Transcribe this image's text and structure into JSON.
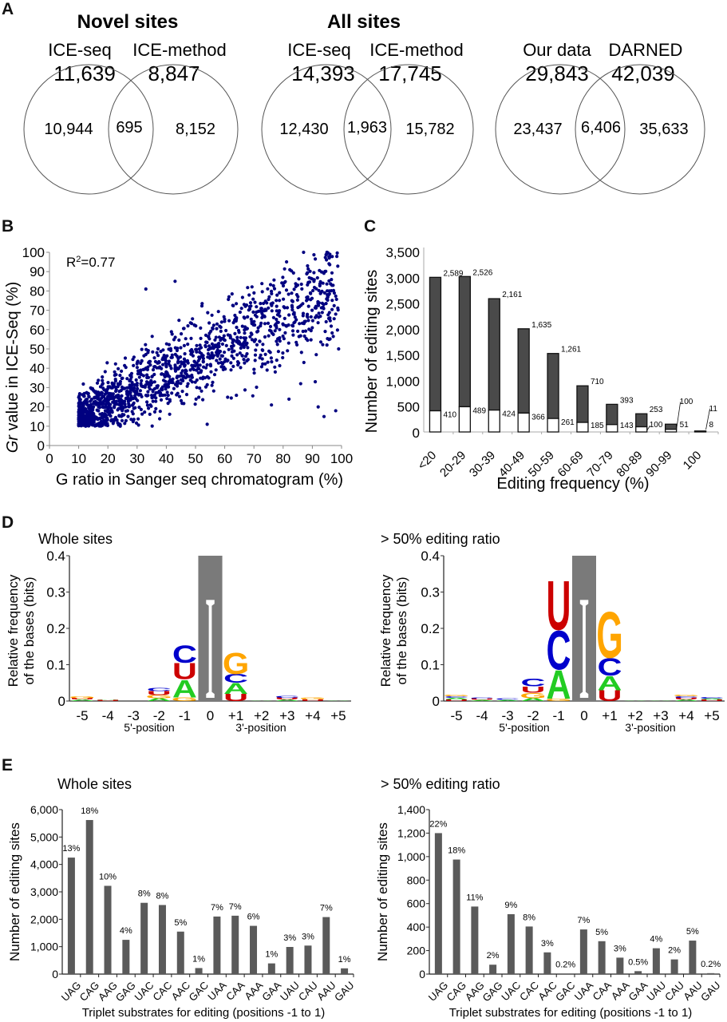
{
  "panels": {
    "A": {
      "letter": "A",
      "venns": [
        {
          "title": "Novel sites",
          "left_label": "ICE-seq",
          "right_label": "ICE-method",
          "left_total": "11,639",
          "right_total": "8,847",
          "left_only": "10,944",
          "overlap": "695",
          "right_only": "8,152"
        },
        {
          "title": "All sites",
          "left_label": "ICE-seq",
          "right_label": "ICE-method",
          "left_total": "14,393",
          "right_total": "17,745",
          "left_only": "12,430",
          "overlap": "1,963",
          "right_only": "15,782"
        },
        {
          "title": "",
          "left_label": "Our data",
          "right_label": "DARNED",
          "left_total": "29,843",
          "right_total": "42,039",
          "left_only": "23,437",
          "overlap": "6,406",
          "right_only": "35,633"
        }
      ]
    },
    "B": {
      "letter": "B"
    },
    "C": {
      "letter": "C"
    },
    "D": {
      "letter": "D"
    },
    "E": {
      "letter": "E"
    }
  },
  "chart_data": [
    {
      "id": "B",
      "type": "scatter",
      "title": "",
      "annotation": "R²=0.77",
      "xlabel": "G ratio in Sanger seq chromatogram (%)",
      "ylabel_italic": "Gr",
      "ylabel": " value in ICE-Seq (%)",
      "xlim": [
        0,
        100
      ],
      "ylim": [
        0,
        100
      ],
      "xticks": [
        "0",
        "10",
        "20",
        "30",
        "40",
        "50",
        "60",
        "70",
        "80",
        "90",
        "100"
      ],
      "yticks": [
        "0",
        "10",
        "20",
        "30",
        "40",
        "50",
        "60",
        "70",
        "80",
        "90",
        "100"
      ],
      "point_color": "#000080",
      "n_points_approx": 1500,
      "trend": {
        "slope": 0.78,
        "intercept": 5,
        "x_range": [
          10,
          99
        ],
        "y_min": 10
      },
      "notable_points": [
        [
          87,
          100
        ],
        [
          95,
          100
        ],
        [
          96,
          99
        ],
        [
          33,
          81
        ],
        [
          43,
          85
        ],
        [
          99,
          50
        ],
        [
          98,
          18
        ],
        [
          94,
          15
        ],
        [
          92,
          20
        ],
        [
          82,
          24
        ],
        [
          76,
          21
        ],
        [
          54,
          11
        ],
        [
          61,
          25
        ],
        [
          64,
          26
        ],
        [
          86,
          32
        ],
        [
          91,
          33
        ],
        [
          95,
          52
        ],
        [
          96,
          66
        ],
        [
          98,
          68
        ]
      ]
    },
    {
      "id": "C",
      "type": "bar",
      "stacked": true,
      "xlabel": "Editing frequency (%)",
      "ylabel": "Number of editing sites",
      "ylim": [
        0,
        3500
      ],
      "yticks": [
        "0",
        "500",
        "1,000",
        "1,500",
        "2,000",
        "2,500",
        "3,000",
        "3,500"
      ],
      "categories": [
        "<20",
        "20-29",
        "30-39",
        "40-49",
        "50-59",
        "60-69",
        "70-79",
        "80-89",
        "90-99",
        "100"
      ],
      "series": [
        {
          "name": "lower (white)",
          "color": "#ffffff",
          "values": [
            410,
            489,
            424,
            366,
            261,
            185,
            143,
            100,
            51,
            8
          ],
          "labels": [
            "410",
            "489",
            "424",
            "366",
            "261",
            "185",
            "143",
            "100",
            "51",
            "8"
          ]
        },
        {
          "name": "upper (dark)",
          "color": "#4a4a4a",
          "values": [
            2589,
            2526,
            2161,
            1635,
            1261,
            710,
            393,
            253,
            100,
            11
          ],
          "labels": [
            "2,589",
            "2,526",
            "2,161",
            "1,635",
            "1,261",
            "710",
            "393",
            "253",
            "100",
            "11"
          ]
        }
      ]
    },
    {
      "id": "D-left",
      "type": "sequence-logo",
      "title": "Whole sites",
      "ylabel_line1": "Relative frequency",
      "ylabel_line2": "of the bases (bits)",
      "ylim": [
        0,
        0.4
      ],
      "yticks": [
        "0",
        "0.1",
        "0.2",
        "0.3",
        "0.4"
      ],
      "positions": [
        "-5",
        "-4",
        "-3",
        "-2",
        "-1",
        "0",
        "+1",
        "+2",
        "+3",
        "+4",
        "+5"
      ],
      "xlabel_left": "5'-position",
      "xlabel_right": "3'-position",
      "base_colors": {
        "A": "#22cc22",
        "C": "#0000cc",
        "G": "#ffa500",
        "U": "#cc0000",
        "I": "#ffffff"
      },
      "center": {
        "letter": "I",
        "value": 0.4,
        "background": "#7a7a7a"
      },
      "stacks": [
        [
          [
            "A",
            0.004
          ],
          [
            "U",
            0.004
          ],
          [
            "G",
            0.005
          ]
        ],
        [
          [
            "U",
            0.003
          ],
          [
            "A",
            0.002
          ]
        ],
        [],
        [
          [
            "A",
            0.008
          ],
          [
            "G",
            0.008
          ],
          [
            "U",
            0.012
          ],
          [
            "C",
            0.009
          ]
        ],
        [
          [
            "G",
            0.01
          ],
          [
            "A",
            0.05
          ],
          [
            "U",
            0.045
          ],
          [
            "C",
            0.05
          ]
        ],
        [],
        [
          [
            "U",
            0.02
          ],
          [
            "A",
            0.03
          ],
          [
            "C",
            0.025
          ],
          [
            "G",
            0.06
          ]
        ],
        [
          [
            "A",
            0.002
          ]
        ],
        [
          [
            "A",
            0.004
          ],
          [
            "U",
            0.005
          ],
          [
            "C",
            0.005
          ]
        ],
        [
          [
            "U",
            0.004
          ],
          [
            "G",
            0.005
          ]
        ],
        [
          [
            "A",
            0.002
          ]
        ]
      ]
    },
    {
      "id": "D-right",
      "type": "sequence-logo",
      "title": "> 50% editing ratio",
      "ylabel_line1": "Relative frequency",
      "ylabel_line2": "of the bases (bits)",
      "ylim": [
        0,
        0.4
      ],
      "yticks": [
        "0",
        "0.1",
        "0.2",
        "0.3",
        "0.4"
      ],
      "positions": [
        "-5",
        "-4",
        "-3",
        "-2",
        "-1",
        "0",
        "+1",
        "+2",
        "+3",
        "+4",
        "+5"
      ],
      "xlabel_left": "5'-position",
      "xlabel_right": "3'-position",
      "base_colors": {
        "A": "#22cc22",
        "C": "#0000cc",
        "G": "#ffa500",
        "U": "#cc0000",
        "I": "#ffffff"
      },
      "center": {
        "letter": "I",
        "value": 0.4,
        "background": "#7a7a7a"
      },
      "stacks": [
        [
          [
            "U",
            0.004
          ],
          [
            "A",
            0.005
          ],
          [
            "C",
            0.004
          ],
          [
            "G",
            0.004
          ]
        ],
        [
          [
            "A",
            0.003
          ],
          [
            "U",
            0.004
          ],
          [
            "C",
            0.003
          ]
        ],
        [
          [
            "A",
            0.003
          ],
          [
            "C",
            0.004
          ]
        ],
        [
          [
            "A",
            0.008
          ],
          [
            "G",
            0.015
          ],
          [
            "U",
            0.018
          ],
          [
            "C",
            0.022
          ]
        ],
        [
          [
            "G",
            0.007
          ],
          [
            "A",
            0.08
          ],
          [
            "C",
            0.11
          ],
          [
            "U",
            0.14
          ]
        ],
        [],
        [
          [
            "U",
            0.03
          ],
          [
            "A",
            0.04
          ],
          [
            "C",
            0.05
          ],
          [
            "G",
            0.13
          ]
        ],
        [
          [
            "A",
            0.002
          ]
        ],
        [
          [
            "A",
            0.002
          ]
        ],
        [
          [
            "A",
            0.004
          ],
          [
            "U",
            0.005
          ],
          [
            "C",
            0.004
          ],
          [
            "G",
            0.004
          ]
        ],
        [
          [
            "U",
            0.004
          ],
          [
            "A",
            0.003
          ],
          [
            "C",
            0.004
          ]
        ]
      ]
    },
    {
      "id": "E-left",
      "type": "bar",
      "title": "Whole sites",
      "xlabel": "Triplet substrates for editing (positions -1 to 1)",
      "ylabel": "Number of editing sites",
      "ylim": [
        0,
        6000
      ],
      "yticks": [
        "0",
        "1,000",
        "2,000",
        "3,000",
        "4,000",
        "5,000",
        "6,000"
      ],
      "categories": [
        "UAG",
        "CAG",
        "AAG",
        "GAG",
        "UAC",
        "CAC",
        "AAC",
        "GAC",
        "UAA",
        "CAA",
        "AAA",
        "GAA",
        "UAU",
        "CAU",
        "AAU",
        "GAU"
      ],
      "values": [
        4250,
        5620,
        3220,
        1250,
        2600,
        2520,
        1550,
        220,
        2100,
        2130,
        1760,
        390,
        990,
        1040,
        2080,
        210
      ],
      "labels": [
        "13%",
        "18%",
        "10%",
        "4%",
        "8%",
        "8%",
        "5%",
        "1%",
        "7%",
        "7%",
        "6%",
        "1%",
        "3%",
        "3%",
        "7%",
        "1%"
      ],
      "color": "#5a5a5a"
    },
    {
      "id": "E-right",
      "type": "bar",
      "title": "> 50% editing ratio",
      "xlabel": "Triplet substrates for editing (positions -1 to 1)",
      "ylabel": "Number of editing sites",
      "ylim": [
        0,
        1400
      ],
      "yticks": [
        "0",
        "200",
        "400",
        "600",
        "800",
        "1,000",
        "1,200",
        "1,400"
      ],
      "categories": [
        "UAG",
        "CAG",
        "AAG",
        "GAG",
        "UAC",
        "CAC",
        "AAC",
        "GAC",
        "UAA",
        "CAA",
        "AAA",
        "GAA",
        "UAU",
        "CAU",
        "AAU",
        "GAU"
      ],
      "values": [
        1200,
        975,
        575,
        80,
        510,
        405,
        185,
        5,
        380,
        280,
        140,
        25,
        220,
        125,
        285,
        8
      ],
      "labels": [
        "22%",
        "18%",
        "11%",
        "2%",
        "9%",
        "8%",
        "3%",
        "0.2%",
        "7%",
        "5%",
        "3%",
        "0.5%",
        "4%",
        "2%",
        "5%",
        "0.2%"
      ],
      "color": "#5a5a5a"
    }
  ]
}
